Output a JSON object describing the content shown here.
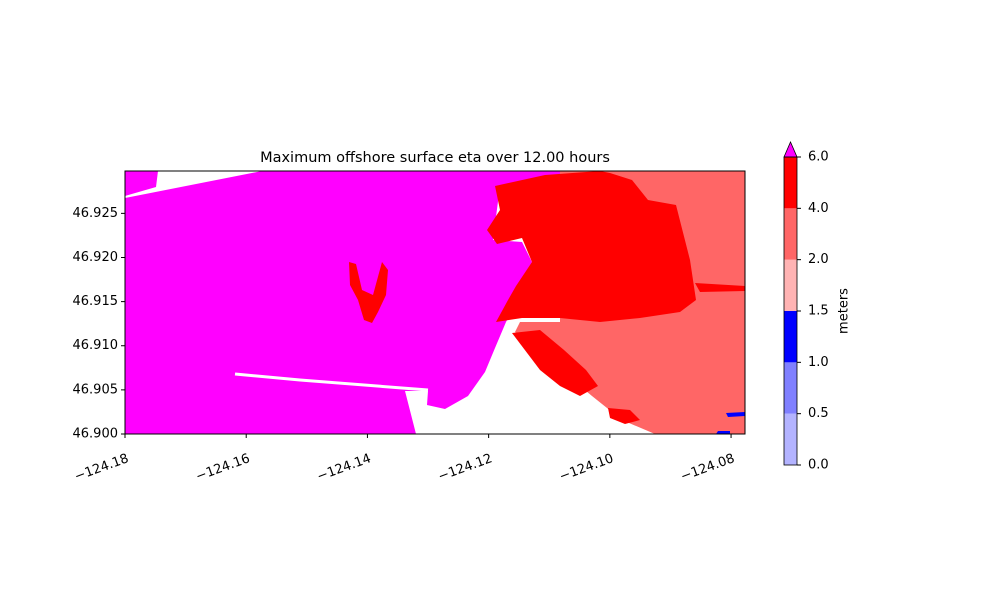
{
  "chart_data": {
    "type": "contour",
    "title": "Maximum offshore surface eta over 12.00 hours",
    "xlim": [
      -124.18,
      -124.0777
    ],
    "ylim": [
      46.9,
      46.9298
    ],
    "xticks": [
      {
        "value": -124.18,
        "label": "−124.18"
      },
      {
        "value": -124.16,
        "label": "−124.16"
      },
      {
        "value": -124.14,
        "label": "−124.14"
      },
      {
        "value": -124.12,
        "label": "−124.12"
      },
      {
        "value": -124.1,
        "label": "−124.10"
      },
      {
        "value": -124.08,
        "label": "−124.08"
      }
    ],
    "yticks": [
      {
        "value": 46.9,
        "label": "46.900"
      },
      {
        "value": 46.905,
        "label": "46.905"
      },
      {
        "value": 46.91,
        "label": "46.910"
      },
      {
        "value": 46.915,
        "label": "46.915"
      },
      {
        "value": 46.92,
        "label": "46.920"
      },
      {
        "value": 46.925,
        "label": "46.925"
      }
    ],
    "colorbar": {
      "label": "meters",
      "levels": [
        {
          "value": 0,
          "label": "0.0"
        },
        {
          "value": 0.5,
          "label": "0.5"
        },
        {
          "value": 1,
          "label": "1.0"
        },
        {
          "value": 1.5,
          "label": "1.5"
        },
        {
          "value": 2,
          "label": "2.0"
        },
        {
          "value": 4,
          "label": "4.0"
        },
        {
          "value": 6,
          "label": "6.0"
        }
      ],
      "colors": [
        "#b3b3ff",
        "#8080ff",
        "#0000ff",
        "#ffb3b3",
        "#ff6666",
        "#ff0000"
      ],
      "over_color": "#ff00ff"
    }
  }
}
